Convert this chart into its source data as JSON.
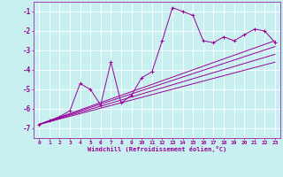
{
  "xlabel": "Windchill (Refroidissement éolien,°C)",
  "bg_color": "#c8f0f0",
  "grid_color": "#ffffff",
  "line_color": "#990099",
  "xlim": [
    -0.5,
    23.5
  ],
  "ylim": [
    -7.5,
    -0.5
  ],
  "xticks": [
    0,
    1,
    2,
    3,
    4,
    5,
    6,
    7,
    8,
    9,
    10,
    11,
    12,
    13,
    14,
    15,
    16,
    17,
    18,
    19,
    20,
    21,
    22,
    23
  ],
  "yticks": [
    -7,
    -6,
    -5,
    -4,
    -3,
    -2,
    -1
  ],
  "x_data": [
    0,
    1,
    2,
    3,
    4,
    5,
    6,
    7,
    8,
    9,
    10,
    11,
    12,
    13,
    14,
    15,
    16,
    17,
    18,
    19,
    20,
    21,
    22,
    23
  ],
  "y_data": [
    -6.8,
    -6.6,
    -6.4,
    -6.1,
    -4.7,
    -5.0,
    -5.8,
    -3.6,
    -5.7,
    -5.3,
    -4.4,
    -4.1,
    -2.5,
    -0.8,
    -1.0,
    -1.2,
    -2.5,
    -2.6,
    -2.3,
    -2.5,
    -2.2,
    -1.9,
    -2.0,
    -2.6
  ],
  "trend_lines": [
    {
      "x": [
        0,
        23
      ],
      "y": [
        -6.8,
        -2.5
      ]
    },
    {
      "x": [
        0,
        23
      ],
      "y": [
        -6.8,
        -2.8
      ]
    },
    {
      "x": [
        0,
        23
      ],
      "y": [
        -6.8,
        -3.2
      ]
    },
    {
      "x": [
        0,
        23
      ],
      "y": [
        -6.8,
        -3.6
      ]
    }
  ],
  "marker_size": 3,
  "line_width": 0.7
}
